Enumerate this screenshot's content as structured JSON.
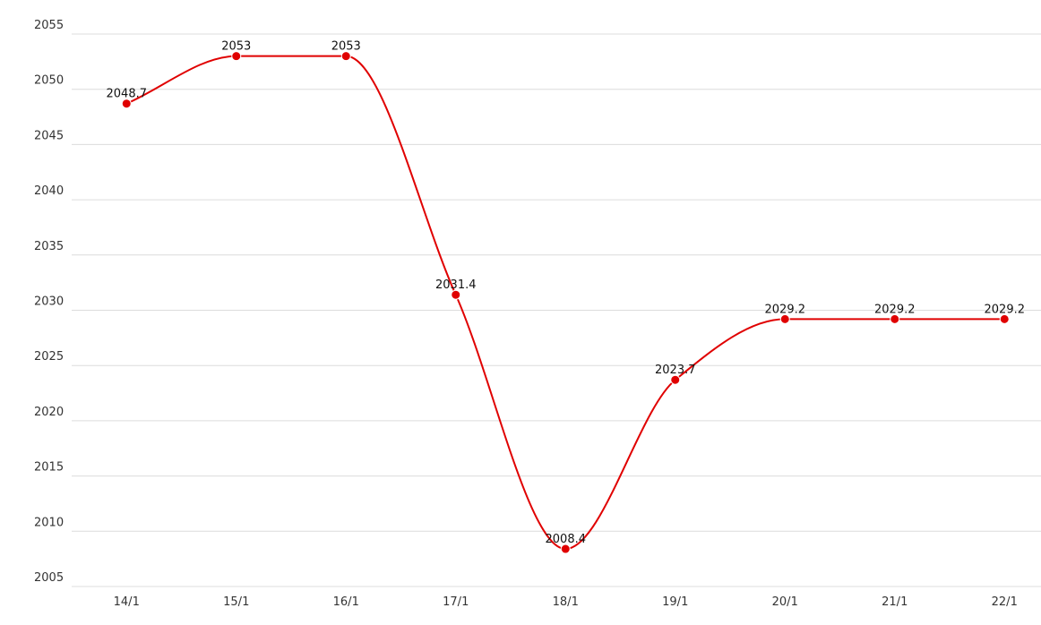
{
  "chart_data": {
    "type": "line",
    "categories": [
      "14/1",
      "15/1",
      "16/1",
      "17/1",
      "18/1",
      "19/1",
      "20/1",
      "21/1",
      "22/1"
    ],
    "values": [
      2048.7,
      2053,
      2053,
      2031.4,
      2008.4,
      2023.7,
      2029.2,
      2029.2,
      2029.2
    ],
    "color": "#e00000",
    "ylim": [
      2005,
      2055
    ],
    "yticks": [
      2005,
      2010,
      2015,
      2020,
      2025,
      2030,
      2035,
      2040,
      2045,
      2050,
      2055
    ],
    "grid": true
  }
}
